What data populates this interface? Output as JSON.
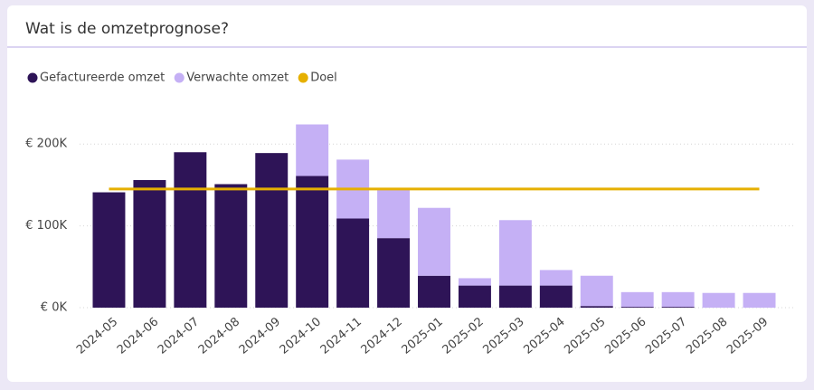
{
  "chart_data": {
    "type": "bar",
    "stacked": true,
    "title": "Wat is de omzetprognose?",
    "categories": [
      "2024-05",
      "2024-06",
      "2024-07",
      "2024-08",
      "2024-09",
      "2024-10",
      "2024-11",
      "2024-12",
      "2025-01",
      "2025-02",
      "2025-03",
      "2025-04",
      "2025-05",
      "2025-06",
      "2025-07",
      "2025-08",
      "2025-09"
    ],
    "series": [
      {
        "name": "Gefactureerde omzet",
        "color": "#2e1457",
        "values": [
          141000,
          156000,
          190000,
          151000,
          189000,
          161000,
          109000,
          85000,
          39000,
          27000,
          27000,
          27000,
          2000,
          1000,
          1000,
          0,
          0
        ]
      },
      {
        "name": "Verwachte omzet",
        "color": "#c5b0f5",
        "values": [
          0,
          0,
          0,
          0,
          0,
          63000,
          72000,
          60000,
          83000,
          9000,
          80000,
          19000,
          37000,
          18000,
          18000,
          18000,
          18000
        ]
      },
      {
        "name": "Doel",
        "type": "line",
        "color": "#e6b000",
        "values": [
          145000,
          145000,
          145000,
          145000,
          145000,
          145000,
          145000,
          145000,
          145000,
          145000,
          145000,
          145000,
          145000,
          145000,
          145000,
          145000,
          145000
        ]
      }
    ],
    "ylim": [
      0,
      250000
    ],
    "yticks": [
      {
        "value": 0,
        "label": "€ 0K"
      },
      {
        "value": 100000,
        "label": "€ 100K"
      },
      {
        "value": 200000,
        "label": "€ 200K"
      }
    ],
    "grid": true,
    "legend": "top-left"
  }
}
